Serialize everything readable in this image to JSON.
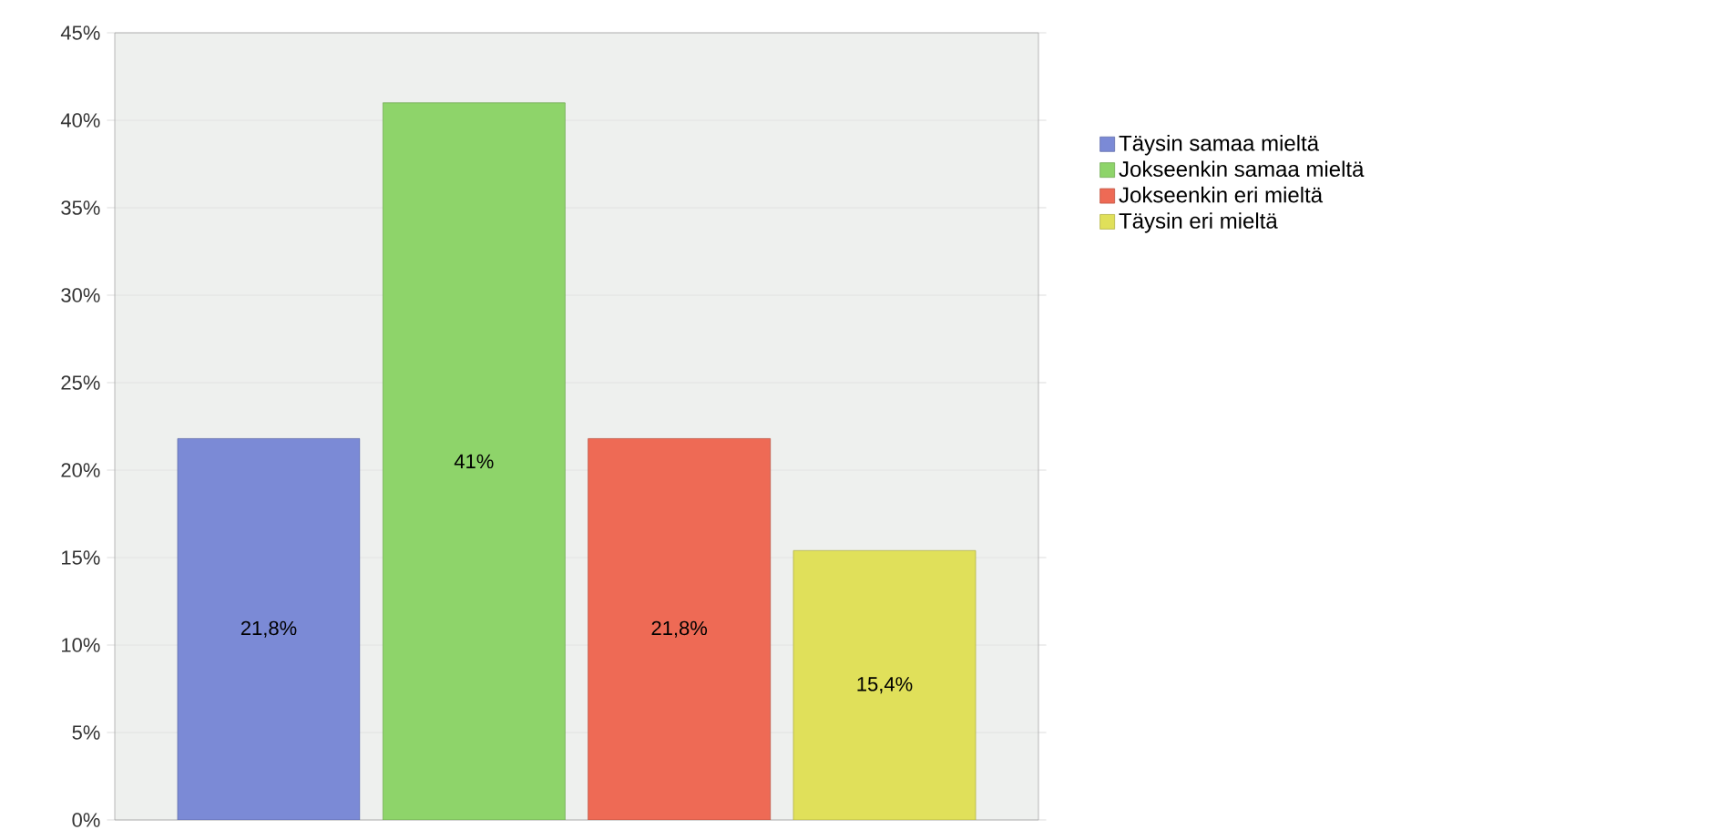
{
  "chart_data": {
    "type": "bar",
    "categories": [
      null,
      null,
      null,
      null
    ],
    "series": [
      {
        "name": "Täysin samaa mieltä",
        "color": "#7b8ad6",
        "values": [
          21.8,
          null,
          null,
          null
        ],
        "value_labels": [
          "21,8%",
          null,
          null,
          null
        ]
      },
      {
        "name": "Jokseenkin samaa mieltä",
        "color": "#8ed46a",
        "values": [
          null,
          41,
          null,
          null
        ],
        "value_labels": [
          null,
          "41%",
          null,
          null
        ]
      },
      {
        "name": "Jokseenkin eri mieltä",
        "color": "#ee6a55",
        "values": [
          null,
          null,
          21.8,
          null
        ],
        "value_labels": [
          null,
          null,
          "21,8%",
          null
        ]
      },
      {
        "name": "Täysin eri mieltä",
        "color": "#e0e05a",
        "values": [
          null,
          null,
          null,
          15.4
        ],
        "value_labels": [
          null,
          null,
          null,
          "15,4%"
        ]
      }
    ],
    "ylim": [
      0,
      45
    ],
    "yticks": [
      {
        "value": 0,
        "label": "0%"
      },
      {
        "value": 5,
        "label": "5%"
      },
      {
        "value": 10,
        "label": "10%"
      },
      {
        "value": 15,
        "label": "15%"
      },
      {
        "value": 20,
        "label": "20%"
      },
      {
        "value": 25,
        "label": "25%"
      },
      {
        "value": 30,
        "label": "30%"
      },
      {
        "value": 35,
        "label": "35%"
      },
      {
        "value": 40,
        "label": "40%"
      },
      {
        "value": 45,
        "label": "45%"
      }
    ],
    "grid": "y",
    "legend": "right"
  }
}
